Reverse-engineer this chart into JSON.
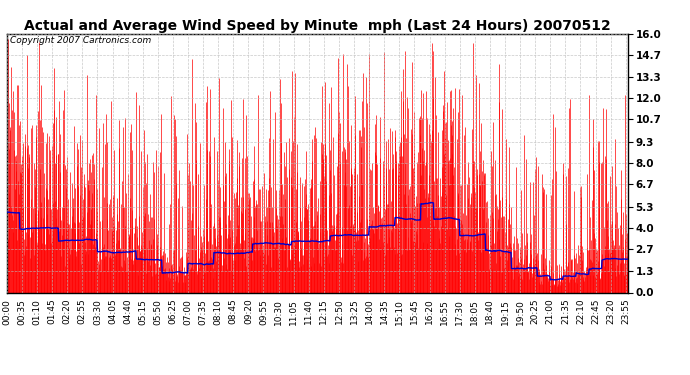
{
  "title": "Actual and Average Wind Speed by Minute  mph (Last 24 Hours) 20070512",
  "copyright": "Copyright 2007 Cartronics.com",
  "yticks": [
    0.0,
    1.3,
    2.7,
    4.0,
    5.3,
    6.7,
    8.0,
    9.3,
    10.7,
    12.0,
    13.3,
    14.7,
    16.0
  ],
  "ymax": 16.0,
  "ymin": 0.0,
  "bar_color": "#FF0000",
  "line_color": "#0000CC",
  "background_color": "#FFFFFF",
  "grid_color": "#BBBBBB",
  "title_fontsize": 10,
  "copyright_fontsize": 6.5,
  "tick_label_fontsize": 6.5,
  "ytick_fontsize": 7.5,
  "label_interval": 35
}
